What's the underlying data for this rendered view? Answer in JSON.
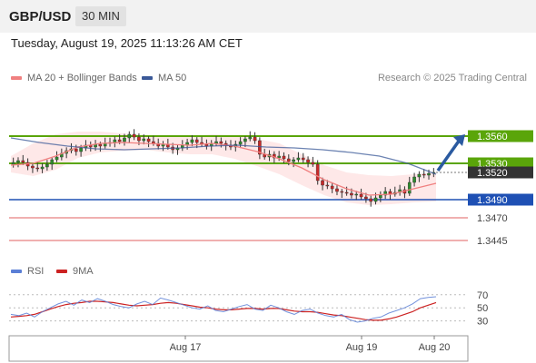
{
  "header": {
    "symbol": "GBP/USD",
    "timeframe": "30 MIN"
  },
  "timestamp": "Tuesday, August 19, 2025 11:13:26 AM CET",
  "legend": {
    "ma20": {
      "label": "MA 20 + Bollinger Bands",
      "color": "#f08080"
    },
    "ma50": {
      "label": "MA 50",
      "color": "#3b5998"
    }
  },
  "credit": "Research © 2025 Trading Central",
  "rsi_legend": {
    "rsi": {
      "label": "RSI",
      "color": "#5b7fd6"
    },
    "ma9": {
      "label": "9MA",
      "color": "#cc2222"
    }
  },
  "colors": {
    "resistance": "#5aa50a",
    "support": "#1e50b4",
    "minor": "#e06060",
    "current": "#333333",
    "arrow": "#2a5aa0",
    "candle_up": "#2e8b2e",
    "candle_down": "#c82828"
  },
  "chart_data": [
    {
      "type": "candlestick",
      "x_labels": [
        "Aug 17",
        "Aug 19",
        "Aug 20"
      ],
      "ylim": [
        1.3425,
        1.3585
      ],
      "price_levels": [
        {
          "value": 1.356,
          "label": "1.3560",
          "kind": "resistance"
        },
        {
          "value": 1.353,
          "label": "1.3530",
          "kind": "resistance"
        },
        {
          "value": 1.352,
          "label": "1.3520",
          "kind": "current"
        },
        {
          "value": 1.349,
          "label": "1.3490",
          "kind": "support"
        },
        {
          "value": 1.347,
          "label": "1.3470",
          "kind": "minor"
        },
        {
          "value": 1.3445,
          "label": "1.3445",
          "kind": "minor"
        }
      ],
      "close_path": [
        1.3531,
        1.3533,
        1.3531,
        1.3527,
        1.3525,
        1.3524,
        1.3526,
        1.3529,
        1.3534,
        1.3537,
        1.3541,
        1.3544,
        1.3546,
        1.3543,
        1.3547,
        1.355,
        1.3548,
        1.3551,
        1.3549,
        1.3552,
        1.3553,
        1.3556,
        1.3554,
        1.3558,
        1.3562,
        1.3559,
        1.3555,
        1.3557,
        1.3554,
        1.3552,
        1.3549,
        1.3551,
        1.3548,
        1.3545,
        1.3547,
        1.355,
        1.3553,
        1.3556,
        1.3553,
        1.3551,
        1.3549,
        1.3552,
        1.3554,
        1.3552,
        1.355,
        1.3548,
        1.3551,
        1.3554,
        1.3557,
        1.3559,
        1.3555,
        1.354,
        1.3537,
        1.354,
        1.3536,
        1.3538,
        1.3535,
        1.3532,
        1.3534,
        1.3536,
        1.3534,
        1.3531,
        1.3529,
        1.3511,
        1.3506,
        1.3505,
        1.3502,
        1.3499,
        1.3498,
        1.3497,
        1.3495,
        1.3496,
        1.3493,
        1.3491,
        1.3488,
        1.3492,
        1.3495,
        1.3499,
        1.3496,
        1.3498,
        1.3501,
        1.3497,
        1.3509,
        1.3515,
        1.3518,
        1.3517,
        1.3519,
        1.352
      ],
      "ma50": [
        1.3558,
        1.3553,
        1.3549,
        1.3546,
        1.3545,
        1.3546,
        1.3547,
        1.3549,
        1.355,
        1.3548,
        1.3547,
        1.3545,
        1.3542,
        1.3538,
        1.353,
        1.3518
      ],
      "ma20": [
        1.3528,
        1.353,
        1.3538,
        1.3548,
        1.3552,
        1.3553,
        1.3552,
        1.3551,
        1.355,
        1.3552,
        1.3549,
        1.3543,
        1.3535,
        1.3525,
        1.3512,
        1.3502,
        1.3495,
        1.3496,
        1.3502,
        1.3508
      ],
      "bollinger_upper": [
        1.3538,
        1.3552,
        1.3562,
        1.3565,
        1.3565,
        1.3563,
        1.3561,
        1.356,
        1.356,
        1.3562,
        1.3561,
        1.3557,
        1.3552,
        1.354,
        1.3528,
        1.352,
        1.3517,
        1.3516,
        1.3518,
        1.352
      ],
      "bollinger_lower": [
        1.352,
        1.3516,
        1.3523,
        1.3536,
        1.3542,
        1.3544,
        1.3545,
        1.3542,
        1.354,
        1.354,
        1.3535,
        1.3527,
        1.3518,
        1.3506,
        1.3495,
        1.3487,
        1.3484,
        1.3485,
        1.3487,
        1.3488
      ],
      "forecast_arrow": {
        "from": 1.352,
        "to": 1.356
      }
    },
    {
      "type": "line",
      "title": "RSI",
      "ylim": [
        10,
        85
      ],
      "y_ticks": [
        70,
        50,
        30
      ],
      "series": [
        {
          "name": "RSI",
          "values": [
            40,
            38,
            42,
            36,
            44,
            50,
            56,
            60,
            54,
            62,
            58,
            64,
            60,
            55,
            52,
            50,
            56,
            60,
            55,
            65,
            62,
            58,
            54,
            50,
            48,
            53,
            46,
            44,
            48,
            52,
            55,
            48,
            46,
            54,
            50,
            44,
            40,
            46,
            48,
            42,
            38,
            36,
            40,
            32,
            28,
            30,
            34,
            36,
            42,
            46,
            50,
            56,
            64,
            66,
            67
          ]
        },
        {
          "name": "9MA",
          "values": [
            36,
            37,
            38,
            40,
            44,
            48,
            52,
            55,
            57,
            58,
            60,
            60,
            59,
            58,
            56,
            54,
            53,
            54,
            55,
            57,
            58,
            57,
            55,
            53,
            51,
            50,
            48,
            47,
            47,
            48,
            49,
            49,
            48,
            49,
            49,
            47,
            45,
            44,
            44,
            43,
            41,
            39,
            38,
            36,
            34,
            32,
            31,
            31,
            33,
            36,
            40,
            44,
            50,
            54,
            58
          ]
        }
      ]
    }
  ]
}
